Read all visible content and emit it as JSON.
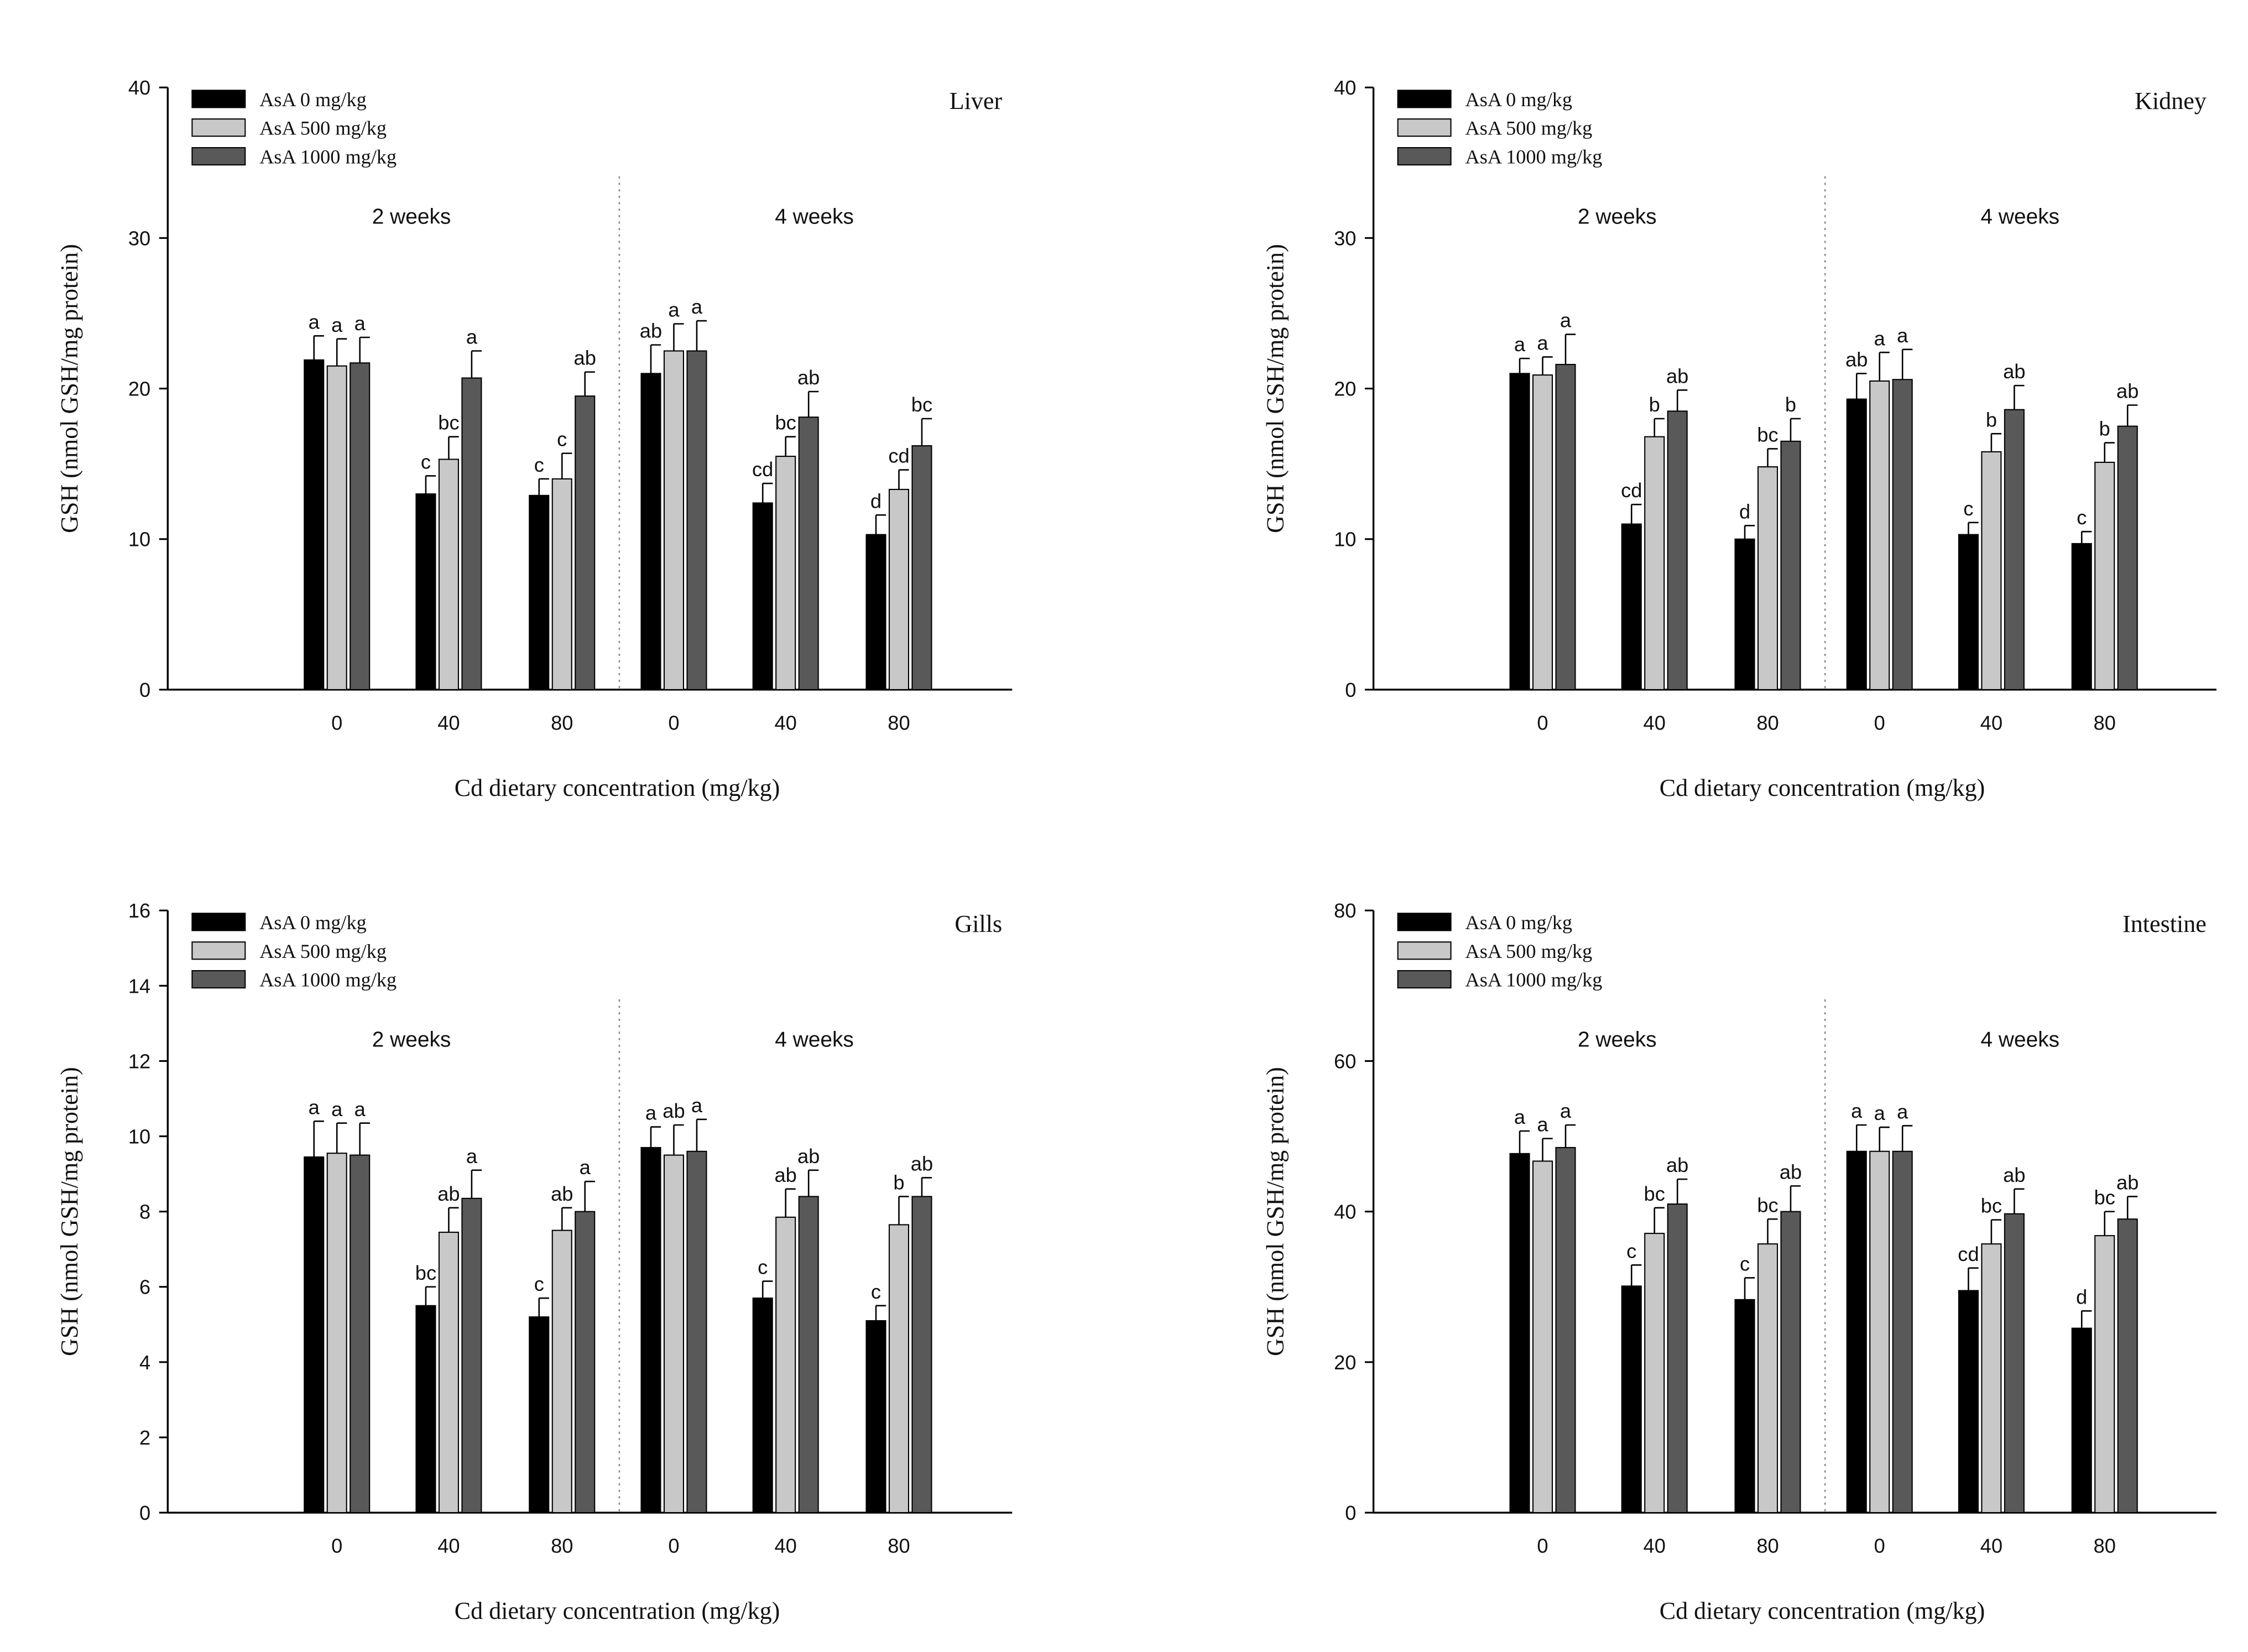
{
  "chart_data": [
    {
      "type": "bar",
      "title": "Liver",
      "xlabel": "Cd dietary concentration (mg/kg)",
      "ylabel": "GSH (nmol GSH/mg protein)",
      "ylim": [
        0,
        40
      ],
      "yticks": [
        "0",
        "10",
        "20",
        "30",
        "40"
      ],
      "groups": [
        {
          "label": "2 weeks",
          "categories": [
            "0",
            "40",
            "80"
          ]
        },
        {
          "label": "4 weeks",
          "categories": [
            "0",
            "40",
            "80"
          ]
        }
      ],
      "legend": {
        "position": "top-left"
      },
      "series": [
        {
          "name": "AsA      0 mg/kg",
          "color": "#000000",
          "values": [
            21.9,
            13.0,
            12.9,
            21.0,
            12.4,
            10.3
          ],
          "errors": [
            1.6,
            1.2,
            1.1,
            1.9,
            1.3,
            1.3
          ],
          "labels": [
            "a",
            "c",
            "c",
            "ab",
            "cd",
            "d"
          ]
        },
        {
          "name": "AsA   500 mg/kg",
          "color": "#c8c8c8",
          "values": [
            21.5,
            15.3,
            14.0,
            22.5,
            15.5,
            13.3
          ],
          "errors": [
            1.8,
            1.5,
            1.7,
            1.8,
            1.3,
            1.3
          ],
          "labels": [
            "a",
            "bc",
            "c",
            "a",
            "bc",
            "cd"
          ]
        },
        {
          "name": "AsA 1000 mg/kg",
          "color": "#595959",
          "values": [
            21.7,
            20.7,
            19.5,
            22.5,
            18.1,
            16.2
          ],
          "errors": [
            1.7,
            1.8,
            1.6,
            2.0,
            1.7,
            1.8
          ],
          "labels": [
            "a",
            "a",
            "ab",
            "a",
            "ab",
            "bc"
          ]
        }
      ]
    },
    {
      "type": "bar",
      "title": "Kidney",
      "xlabel": "Cd dietary concentration (mg/kg)",
      "ylabel": "GSH (nmol GSH/mg protein)",
      "ylim": [
        0,
        40
      ],
      "yticks": [
        "0",
        "10",
        "20",
        "30",
        "40"
      ],
      "groups": [
        {
          "label": "2 weeks",
          "categories": [
            "0",
            "40",
            "80"
          ]
        },
        {
          "label": "4 weeks",
          "categories": [
            "0",
            "40",
            "80"
          ]
        }
      ],
      "legend": {
        "position": "top-left"
      },
      "series": [
        {
          "name": "AsA      0 mg/kg",
          "color": "#000000",
          "values": [
            21.0,
            11.0,
            10.0,
            19.3,
            10.3,
            9.7
          ],
          "errors": [
            1.0,
            1.3,
            0.9,
            1.7,
            0.8,
            0.8
          ],
          "labels": [
            "a",
            "cd",
            "d",
            "ab",
            "c",
            "c"
          ]
        },
        {
          "name": "AsA   500 mg/kg",
          "color": "#c8c8c8",
          "values": [
            20.9,
            16.8,
            14.8,
            20.5,
            15.8,
            15.1
          ],
          "errors": [
            1.2,
            1.2,
            1.2,
            1.9,
            1.2,
            1.3
          ],
          "labels": [
            "a",
            "b",
            "bc",
            "a",
            "b",
            "b"
          ]
        },
        {
          "name": "AsA 1000 mg/kg",
          "color": "#595959",
          "values": [
            21.6,
            18.5,
            16.5,
            20.6,
            18.6,
            17.5
          ],
          "errors": [
            2.0,
            1.4,
            1.5,
            2.0,
            1.6,
            1.4
          ],
          "labels": [
            "a",
            "ab",
            "b",
            "a",
            "ab",
            "ab"
          ]
        }
      ]
    },
    {
      "type": "bar",
      "title": "Gills",
      "xlabel": "Cd dietary concentration (mg/kg)",
      "ylabel": "GSH (nmol GSH/mg protein)",
      "ylim": [
        0,
        16
      ],
      "yticks": [
        "0",
        "2",
        "4",
        "6",
        "8",
        "10",
        "12",
        "14",
        "16"
      ],
      "groups": [
        {
          "label": "2 weeks",
          "categories": [
            "0",
            "40",
            "80"
          ]
        },
        {
          "label": "4 weeks",
          "categories": [
            "0",
            "40",
            "80"
          ]
        }
      ],
      "legend": {
        "position": "top-left"
      },
      "series": [
        {
          "name": "AsA      0 mg/kg",
          "color": "#000000",
          "values": [
            9.45,
            5.5,
            5.2,
            9.7,
            5.7,
            5.1
          ],
          "errors": [
            0.95,
            0.5,
            0.5,
            0.55,
            0.45,
            0.4
          ],
          "labels": [
            "a",
            "bc",
            "c",
            "a",
            "c",
            "c"
          ]
        },
        {
          "name": "AsA   500 mg/kg",
          "color": "#c8c8c8",
          "values": [
            9.55,
            7.45,
            7.5,
            9.5,
            7.85,
            7.65
          ],
          "errors": [
            0.8,
            0.65,
            0.6,
            0.8,
            0.75,
            0.75
          ],
          "labels": [
            "a",
            "ab",
            "ab",
            "ab",
            "ab",
            "b"
          ]
        },
        {
          "name": "AsA 1000 mg/kg",
          "color": "#595959",
          "values": [
            9.5,
            8.35,
            8.0,
            9.6,
            8.4,
            8.4
          ],
          "errors": [
            0.85,
            0.75,
            0.8,
            0.85,
            0.7,
            0.5
          ],
          "labels": [
            "a",
            "a",
            "a",
            "a",
            "ab",
            "ab"
          ]
        }
      ]
    },
    {
      "type": "bar",
      "title": "Intestine",
      "xlabel": "Cd dietary concentration (mg/kg)",
      "ylabel": "GSH (nmol GSH/mg protein)",
      "ylim": [
        0,
        80
      ],
      "yticks": [
        "0",
        "20",
        "40",
        "60",
        "80"
      ],
      "groups": [
        {
          "label": "2 weeks",
          "categories": [
            "0",
            "40",
            "80"
          ]
        },
        {
          "label": "4 weeks",
          "categories": [
            "0",
            "40",
            "80"
          ]
        }
      ],
      "legend": {
        "position": "top-left"
      },
      "series": [
        {
          "name": "AsA      0 mg/kg",
          "color": "#000000",
          "values": [
            47.7,
            30.1,
            28.3,
            48.0,
            29.5,
            24.5
          ],
          "errors": [
            3.0,
            2.8,
            2.9,
            3.5,
            3.0,
            2.3
          ],
          "labels": [
            "a",
            "c",
            "c",
            "a",
            "cd",
            "d"
          ]
        },
        {
          "name": "AsA   500 mg/kg",
          "color": "#c8c8c8",
          "values": [
            46.7,
            37.1,
            35.7,
            48.0,
            35.7,
            36.8
          ],
          "errors": [
            3.0,
            3.4,
            3.3,
            3.2,
            3.2,
            3.2
          ],
          "labels": [
            "a",
            "bc",
            "bc",
            "a",
            "bc",
            "bc"
          ]
        },
        {
          "name": "AsA 1000 mg/kg",
          "color": "#595959",
          "values": [
            48.5,
            41.0,
            40.0,
            48.0,
            39.7,
            39.0
          ],
          "errors": [
            3.0,
            3.3,
            3.4,
            3.4,
            3.3,
            3.0
          ],
          "labels": [
            "a",
            "ab",
            "ab",
            "a",
            "ab",
            "ab"
          ]
        }
      ]
    }
  ]
}
